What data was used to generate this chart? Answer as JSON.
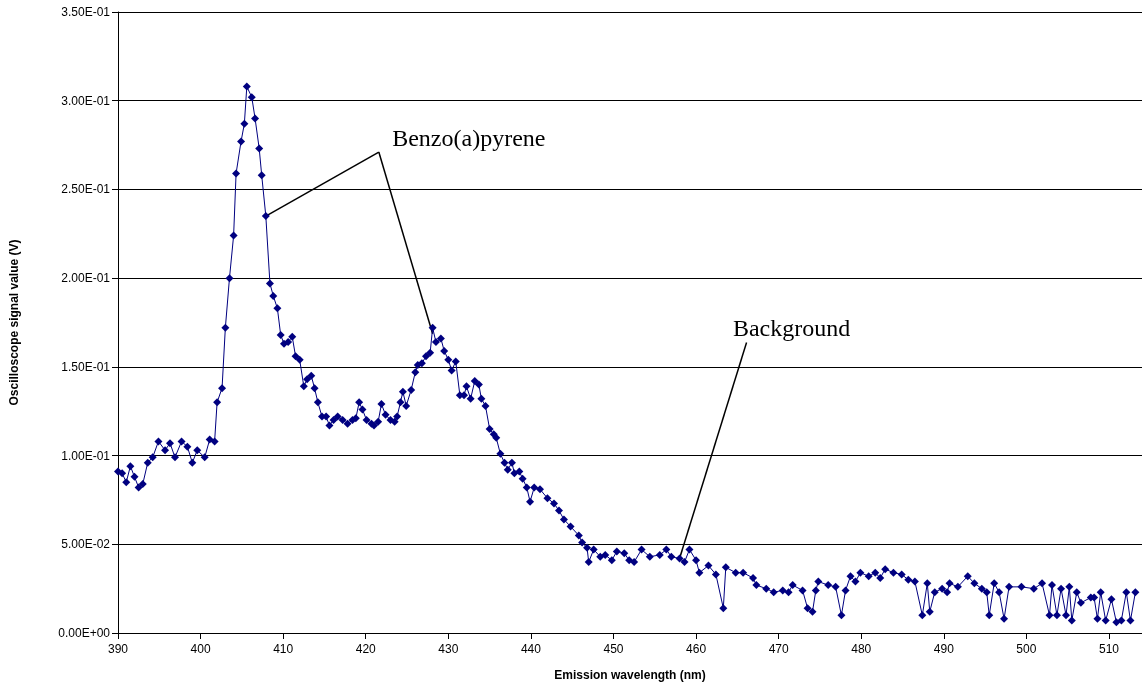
{
  "chart_data": {
    "type": "line",
    "xlabel": "Emission wavelength (nm)",
    "ylabel": "Oscilloscope signal value (V)",
    "xlim": [
      390,
      514
    ],
    "xticks": [
      390,
      400,
      410,
      420,
      430,
      440,
      450,
      460,
      470,
      480,
      490,
      500,
      510
    ],
    "ylim": [
      0,
      0.35
    ],
    "yticks": [
      {
        "value": 0,
        "label": "0.00E+00"
      },
      {
        "value": 0.05,
        "label": "5.00E-02"
      },
      {
        "value": 0.1,
        "label": "1.00E-01"
      },
      {
        "value": 0.15,
        "label": "1.50E-01"
      },
      {
        "value": 0.2,
        "label": "2.00E-01"
      },
      {
        "value": 0.25,
        "label": "2.50E-01"
      },
      {
        "value": 0.3,
        "label": "3.00E-01"
      },
      {
        "value": 0.35,
        "label": "3.50E-01"
      }
    ],
    "grid": "y",
    "marker": "diamond",
    "line_style": "solid",
    "annotations": [
      {
        "text": "Benzo(a)pyrene",
        "x": 407.9,
        "y": 0.235
      },
      {
        "text": "Background",
        "x": 458.0,
        "y": 0.042
      }
    ],
    "series": [
      {
        "color": "#000080",
        "x": [
          390.0,
          390.5,
          391.0,
          391.5,
          392.0,
          392.5,
          393.0,
          393.6,
          394.2,
          394.9,
          395.7,
          396.3,
          396.9,
          397.7,
          398.4,
          399.0,
          399.6,
          400.5,
          401.1,
          401.7,
          402.0,
          402.6,
          403.0,
          403.5,
          404.0,
          404.3,
          404.9,
          405.3,
          405.6,
          406.2,
          406.6,
          407.1,
          407.4,
          407.9,
          408.4,
          408.8,
          409.3,
          409.7,
          410.1,
          410.6,
          411.1,
          411.5,
          412.0,
          412.5,
          412.9,
          413.4,
          413.8,
          414.2,
          414.7,
          415.2,
          415.6,
          416.1,
          416.6,
          417.2,
          417.8,
          418.4,
          418.8,
          419.2,
          419.6,
          420.1,
          420.7,
          421.0,
          421.5,
          421.9,
          422.4,
          423.0,
          423.5,
          423.8,
          424.2,
          424.5,
          424.9,
          425.5,
          426.0,
          426.3,
          426.8,
          427.3,
          427.8,
          428.1,
          428.5,
          429.1,
          429.5,
          430.0,
          430.4,
          430.9,
          431.4,
          431.9,
          432.2,
          432.7,
          433.2,
          433.7,
          434.0,
          434.5,
          435.0,
          435.5,
          435.8,
          436.3,
          436.8,
          437.2,
          437.7,
          438.0,
          438.6,
          439.0,
          439.5,
          439.9,
          440.4,
          441.1,
          442.0,
          442.8,
          443.4,
          444.0,
          444.8,
          445.8,
          446.2,
          446.8,
          447.0,
          447.6,
          448.4,
          449.0,
          449.8,
          450.4,
          451.3,
          451.9,
          452.5,
          453.4,
          454.4,
          455.6,
          456.4,
          457.0,
          458.0,
          458.6,
          459.2,
          460.0,
          460.4,
          461.5,
          462.4,
          463.3,
          463.6,
          464.8,
          465.7,
          466.9,
          467.3,
          468.5,
          469.4,
          470.5,
          471.2,
          471.7,
          472.9,
          473.5,
          474.1,
          474.5,
          474.8,
          476.0,
          476.9,
          477.6,
          478.1,
          478.7,
          479.3,
          479.9,
          480.9,
          481.7,
          482.3,
          482.9,
          483.9,
          484.9,
          485.7,
          486.5,
          487.4,
          488.0,
          488.3,
          488.9,
          489.8,
          490.4,
          490.7,
          491.7,
          492.9,
          493.7,
          494.6,
          495.2,
          495.5,
          496.1,
          496.7,
          497.3,
          497.9,
          499.4,
          500.9,
          501.9,
          502.8,
          503.1,
          503.7,
          504.2,
          504.8,
          505.2,
          505.5,
          506.1,
          506.6,
          507.8,
          508.2,
          508.6,
          509.0,
          509.6,
          510.3,
          510.9,
          511.5,
          512.1,
          512.6,
          513.2
        ],
        "values": [
          0.091,
          0.09,
          0.085,
          0.094,
          0.088,
          0.082,
          0.084,
          0.096,
          0.099,
          0.108,
          0.103,
          0.107,
          0.099,
          0.108,
          0.105,
          0.096,
          0.103,
          0.099,
          0.109,
          0.108,
          0.13,
          0.138,
          0.172,
          0.2,
          0.224,
          0.259,
          0.277,
          0.287,
          0.308,
          0.302,
          0.29,
          0.273,
          0.258,
          0.235,
          0.197,
          0.19,
          0.183,
          0.168,
          0.163,
          0.164,
          0.167,
          0.156,
          0.154,
          0.139,
          0.143,
          0.145,
          0.138,
          0.13,
          0.122,
          0.122,
          0.117,
          0.12,
          0.122,
          0.12,
          0.118,
          0.12,
          0.121,
          0.13,
          0.126,
          0.12,
          0.118,
          0.117,
          0.119,
          0.129,
          0.123,
          0.12,
          0.119,
          0.122,
          0.13,
          0.136,
          0.128,
          0.137,
          0.147,
          0.151,
          0.152,
          0.156,
          0.158,
          0.172,
          0.164,
          0.166,
          0.159,
          0.154,
          0.148,
          0.153,
          0.134,
          0.134,
          0.139,
          0.132,
          0.142,
          0.14,
          0.132,
          0.128,
          0.115,
          0.112,
          0.11,
          0.101,
          0.096,
          0.092,
          0.096,
          0.09,
          0.091,
          0.087,
          0.082,
          0.074,
          0.082,
          0.081,
          0.076,
          0.073,
          0.069,
          0.064,
          0.06,
          0.055,
          0.051,
          0.048,
          0.04,
          0.047,
          0.043,
          0.044,
          0.041,
          0.046,
          0.045,
          0.041,
          0.04,
          0.047,
          0.043,
          0.044,
          0.047,
          0.043,
          0.042,
          0.04,
          0.047,
          0.041,
          0.034,
          0.038,
          0.033,
          0.014,
          0.037,
          0.034,
          0.034,
          0.031,
          0.027,
          0.025,
          0.023,
          0.024,
          0.023,
          0.027,
          0.024,
          0.014,
          0.012,
          0.024,
          0.029,
          0.027,
          0.026,
          0.01,
          0.024,
          0.032,
          0.029,
          0.034,
          0.032,
          0.034,
          0.031,
          0.036,
          0.034,
          0.033,
          0.03,
          0.029,
          0.01,
          0.028,
          0.012,
          0.023,
          0.025,
          0.023,
          0.028,
          0.026,
          0.032,
          0.028,
          0.025,
          0.023,
          0.01,
          0.028,
          0.023,
          0.008,
          0.026,
          0.026,
          0.025,
          0.028,
          0.01,
          0.027,
          0.01,
          0.025,
          0.01,
          0.026,
          0.007,
          0.023,
          0.017,
          0.02,
          0.02,
          0.008,
          0.023,
          0.007,
          0.019,
          0.006,
          0.007,
          0.023,
          0.007,
          0.023
        ]
      }
    ]
  }
}
